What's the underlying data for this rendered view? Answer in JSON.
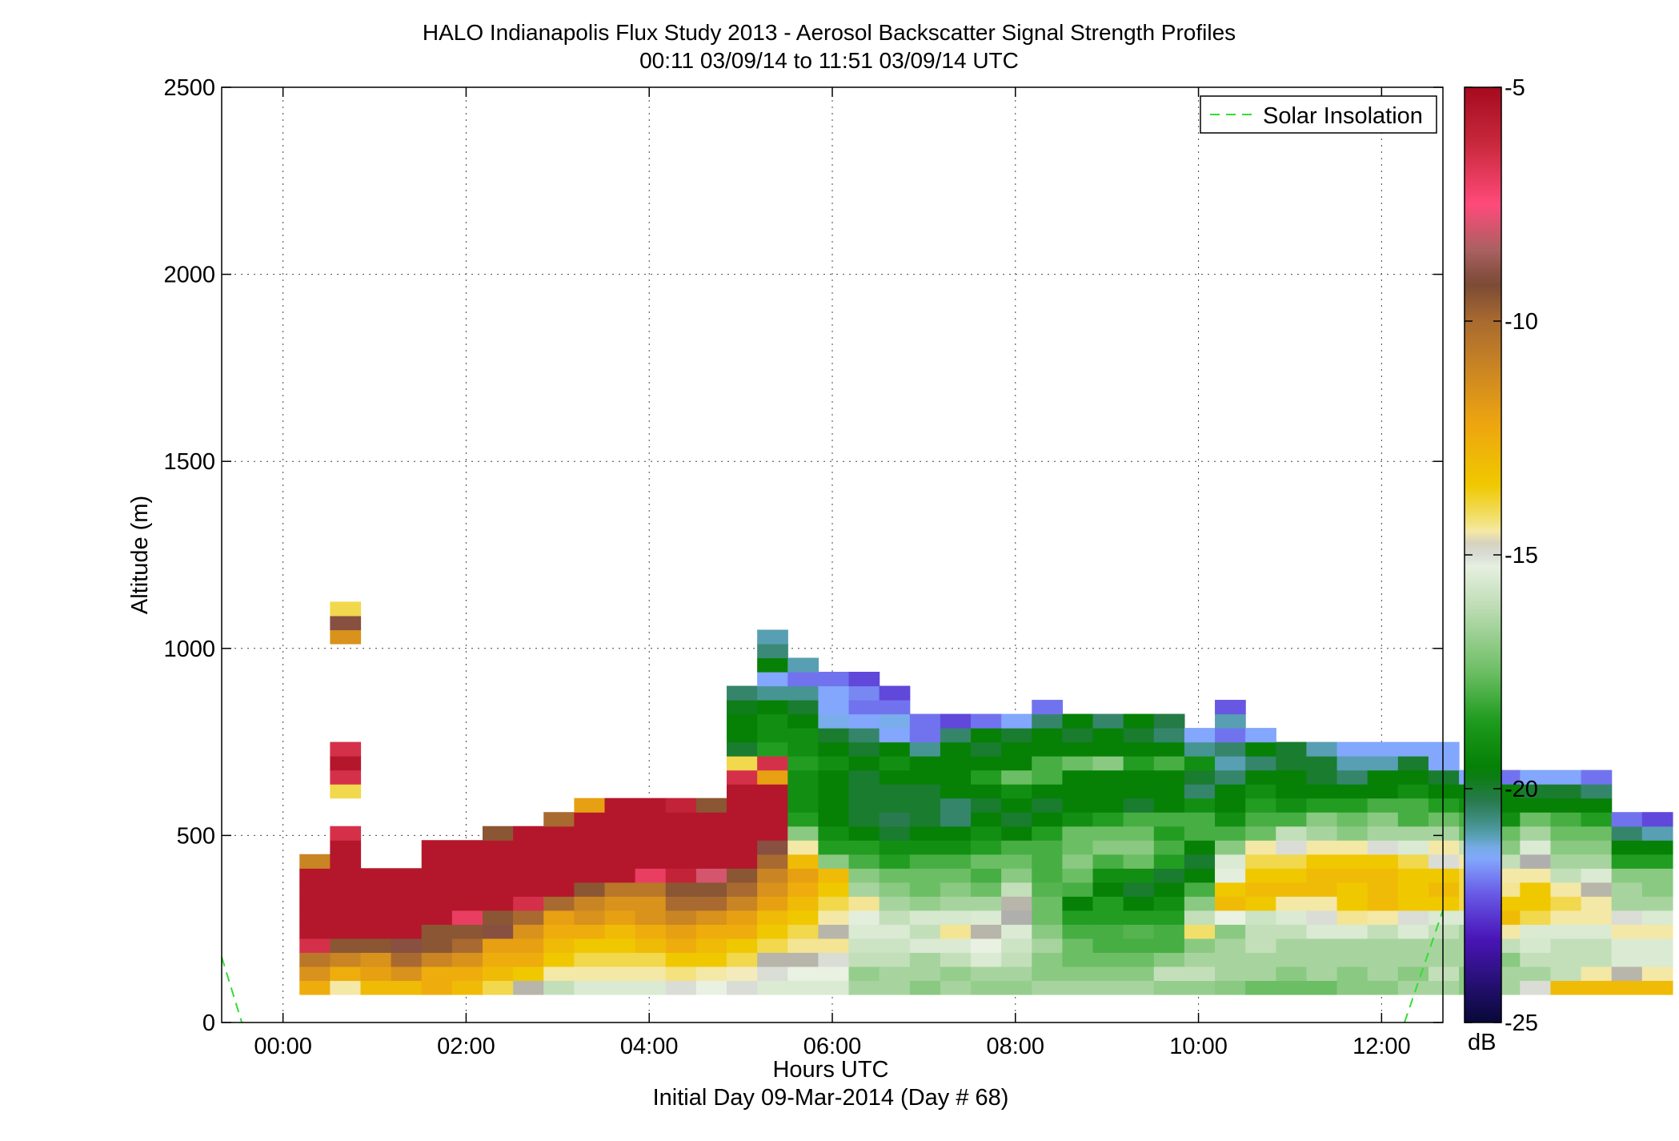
{
  "chart_data": {
    "type": "heatmap",
    "title": "HALO Indianapolis Flux Study 2013 - Aerosol Backscatter Signal Strength Profiles",
    "subtitle": "00:11 03/09/14 to 11:51 03/09/14  UTC",
    "xlabel": "Hours UTC",
    "xlabel2": "Initial Day 09-Mar-2014 (Day # 68)",
    "ylabel": "Altitude (m)",
    "xlim": [
      -0.67,
      12.67
    ],
    "ylim": [
      0,
      2500
    ],
    "x_ticks": [
      0,
      2,
      4,
      6,
      8,
      10,
      12
    ],
    "x_tick_labels": [
      "00:00",
      "02:00",
      "04:00",
      "06:00",
      "08:00",
      "10:00",
      "12:00"
    ],
    "y_ticks": [
      0,
      500,
      1000,
      1500,
      2000,
      2500
    ],
    "y_tick_labels": [
      "0",
      "500",
      "1000",
      "1500",
      "2000",
      "2500"
    ],
    "grid": true,
    "legend": {
      "position": "top-right",
      "entries": [
        {
          "name": "Solar Insolation",
          "style": "dashed",
          "color": "#33dd33"
        }
      ]
    },
    "colorbar": {
      "label": "dB",
      "range": [
        -25,
        -5
      ],
      "ticks": [
        -5,
        -10,
        -15,
        -20,
        -25
      ],
      "tick_labels": [
        "-5",
        "-10",
        "-15",
        "-20",
        "-25"
      ]
    },
    "series": [
      {
        "name": "Solar Insolation",
        "x": [
          -0.67,
          -0.45,
          12.25,
          12.67
        ],
        "y": [
          175,
          0,
          0,
          300
        ]
      }
    ],
    "heatmap": {
      "x_start": 0.18,
      "dx": 0.3333,
      "y_start": 75,
      "dy": 37.5,
      "value_units": "dB",
      "columns": [
        [
          -12.5,
          -11.5,
          -10.5,
          -6.5,
          -5.5,
          -5.5,
          -5.5,
          -5.5,
          -5.5,
          -11
        ],
        [
          -14.5,
          -12.5,
          -11,
          -9.5,
          -5.5,
          -5.5,
          -5.5,
          -5.5,
          -5.5,
          -5.5,
          -5.5,
          -6.5,
          null,
          null,
          -14,
          -6.5,
          -5.5,
          -6.5,
          null,
          null,
          null,
          null,
          null,
          null,
          null,
          -11.5,
          -9,
          -14
        ],
        [
          -13,
          -12,
          -11.5,
          -9.5,
          -5.5,
          -5.5,
          -5.5,
          -5.5,
          -5.5
        ],
        [
          -13,
          -11.5,
          -10,
          -9,
          -5.5,
          -5.5,
          -5.5,
          -5.5,
          -5.5
        ],
        [
          -12.5,
          -12.5,
          -11,
          -9.5,
          -9.5,
          -5.5,
          -5.5,
          -5.5,
          -5.5,
          -5.5,
          -5.5
        ],
        [
          -13,
          -12.5,
          -11.5,
          -10,
          -9.5,
          -7,
          -5.5,
          -5.5,
          -5.5,
          -5.5,
          -5.5
        ],
        [
          -14,
          -13,
          -12.5,
          -12,
          -9,
          -9.5,
          -5.5,
          -5.5,
          -5.5,
          -5.5,
          -5.5,
          -9.5
        ],
        [
          -14.8,
          -13.5,
          -12.5,
          -12,
          -11.5,
          -10,
          -6.5,
          -5.5,
          -5.5,
          -5.5,
          -5.5,
          -5.5
        ],
        [
          -16,
          -14.5,
          -13.5,
          -13,
          -12.5,
          -12,
          -10,
          -5.5,
          -5.5,
          -5.5,
          -5.5,
          -5.5,
          -10
        ],
        [
          -15.5,
          -14.5,
          -14,
          -13.5,
          -12.5,
          -11.5,
          -11,
          -9.5,
          -5.5,
          -5.5,
          -5.5,
          -5.5,
          -5.5,
          -12
        ],
        [
          -15.5,
          -14.5,
          -14,
          -13.5,
          -13,
          -12,
          -11.5,
          -10.5,
          -5.5,
          -5.5,
          -5.5,
          -5.5,
          -5.5,
          -5.5
        ],
        [
          -15.5,
          -14.5,
          -14,
          -13,
          -12.5,
          -11.5,
          -11.5,
          -10.5,
          -7,
          -5.5,
          -5.5,
          -5.5,
          -5.5,
          -5.5
        ],
        [
          -15,
          -14.3,
          -13.5,
          -12.5,
          -12,
          -11,
          -10,
          -9.5,
          -6,
          -5.5,
          -5.5,
          -5.5,
          -5.5,
          -6
        ],
        [
          -15.2,
          -14.5,
          -13.5,
          -13,
          -12.5,
          -11.5,
          -10,
          -9.5,
          -8,
          -5.5,
          -5.5,
          -5.5,
          -5.5,
          -9.5
        ],
        [
          -15,
          -14.6,
          -14,
          -13.5,
          -12.5,
          -12,
          -11,
          -10,
          -9.5,
          -5.5,
          -5.5,
          -5.5,
          -5.5,
          -5.5,
          -5.5,
          -6.5,
          -14,
          -20,
          -19.5,
          -19.5,
          -19.8,
          -20.5
        ],
        [
          -15.5,
          -15,
          -14.8,
          -14,
          -13.5,
          -13,
          -12,
          -11.5,
          -11,
          -10,
          -9,
          -5.5,
          -5.5,
          -5.5,
          -5.5,
          -12,
          -6.5,
          -18.5,
          -19,
          -19,
          -19.5,
          -20.8,
          -21.5,
          -19.5,
          -20.6,
          -21
        ],
        [
          -15.5,
          -15.2,
          -14.8,
          -14.4,
          -14,
          -13.5,
          -13,
          -12.5,
          -12,
          -13,
          -14.5,
          -17,
          -18.5,
          -19,
          -19,
          -19,
          -18.5,
          -19,
          -19,
          -19.5,
          -20,
          -20.8,
          -22,
          -21
        ],
        [
          -15.5,
          -15.2,
          -15,
          -14.4,
          -14.8,
          -14.5,
          -14,
          -13.5,
          -13,
          -17,
          -18.5,
          -19,
          -19.5,
          -19.5,
          -19.5,
          -19.5,
          -19,
          -19.5,
          -20,
          -21.3,
          -21.5,
          -21.5,
          -22
        ],
        [
          -16.5,
          -16.8,
          -16,
          -15.8,
          -15.5,
          -15.3,
          -14.4,
          -16.5,
          -17,
          -18,
          -18.5,
          -19.5,
          -20,
          -20,
          -20,
          -20,
          -19.5,
          -20,
          -20.5,
          -21.5,
          -22,
          -21.8,
          -22.5
        ],
        [
          -16.5,
          -16.5,
          -16,
          -15.8,
          -15.5,
          -16,
          -16.5,
          -17,
          -17.5,
          -18.5,
          -19,
          -20,
          -20.3,
          -20,
          -20,
          -19.5,
          -19,
          -19.5,
          -21.5,
          -21.3,
          -22,
          -22.5
        ],
        [
          -17,
          -16.5,
          -16.5,
          -15.5,
          -16,
          -15.6,
          -16.8,
          -17.5,
          -17.5,
          -18,
          -19,
          -19.5,
          -20,
          -20,
          -20,
          -19.5,
          -19.5,
          -20.8,
          -22,
          -22
        ],
        [
          -16.5,
          -16.8,
          -16,
          -15.5,
          -14.4,
          -15.6,
          -16.5,
          -17,
          -17.5,
          -18,
          -19,
          -19.5,
          -20.5,
          -20.5,
          -19.5,
          -19.5,
          -19.5,
          -19.5,
          -20.5,
          -22.5
        ],
        [
          -16.8,
          -16.5,
          -15.5,
          -15.2,
          -14.8,
          -15.5,
          -16.5,
          -17.5,
          -18,
          -17.5,
          -18.5,
          -19,
          -19.5,
          -20,
          -19.5,
          -18.5,
          -19.5,
          -20,
          -19.5,
          -22
        ],
        [
          -16.8,
          -16.5,
          -16,
          -15.8,
          -15.5,
          -14.9,
          -14.8,
          -16,
          -17,
          -17.5,
          -18,
          -19.5,
          -20,
          -19.5,
          -19,
          -17.5,
          -19.5,
          -19.5,
          -20,
          -21.5
        ],
        [
          -16.5,
          -17,
          -17,
          -16.5,
          -17,
          -17.5,
          -17.5,
          -17.8,
          -18,
          -18,
          -18,
          -18.5,
          -19.5,
          -20,
          -19.5,
          -18,
          -18,
          -19.5,
          -19.5,
          -20.5,
          -22
        ],
        [
          -16.5,
          -17,
          -17.5,
          -17.5,
          -18,
          -18.5,
          -19.5,
          -18,
          -17.5,
          -17,
          -17.5,
          -17.5,
          -19,
          -19.5,
          -19.5,
          -19.5,
          -17.5,
          -19.5,
          -20,
          -19.5
        ],
        [
          -16.5,
          -17,
          -17.5,
          -18,
          -18,
          -18.5,
          -18.5,
          -19.5,
          -19,
          -18,
          -17,
          -17.5,
          -18.5,
          -19.5,
          -19.5,
          -19.5,
          -17,
          -19.5,
          -19.5,
          -20.5
        ],
        [
          -16.5,
          -17,
          -17.5,
          -18,
          -17.8,
          -18.5,
          -19.5,
          -20,
          -19,
          -17.5,
          -17,
          -17.5,
          -18,
          -20,
          -19.5,
          -19.5,
          -18.5,
          -19.5,
          -20,
          -19.5
        ],
        [
          -16.8,
          -16,
          -17,
          -18,
          -18,
          -18.5,
          -19,
          -19.5,
          -20,
          -18.5,
          -18,
          -18.5,
          -18,
          -19.5,
          -19.5,
          -19.5,
          -18,
          -19.5,
          -20.5,
          -20.2
        ],
        [
          -16.8,
          -16,
          -16.5,
          -17,
          -14.2,
          -16,
          -17,
          -18,
          -19.5,
          -20,
          -19.5,
          -18,
          -18,
          -19,
          -20.5,
          -20,
          -19,
          -20.8,
          -21.5
        ],
        [
          -17,
          -16.5,
          -16.5,
          -16.5,
          -17,
          -15.2,
          -13,
          -13.5,
          -15.3,
          -15.5,
          -17,
          -18,
          -19,
          -19.5,
          -19.5,
          -20.5,
          -21,
          -20.5,
          -22,
          -21,
          -22.3
        ],
        [
          -17.5,
          -16.5,
          -16.5,
          -16,
          -16,
          -15.8,
          -13.5,
          -13,
          -13.5,
          -14,
          -14.5,
          -17.5,
          -18,
          -18.5,
          -19,
          -19.5,
          -20.5,
          -19.5,
          -21.5
        ],
        [
          -17.5,
          -17,
          -16.5,
          -16.5,
          -16,
          -15.5,
          -14.5,
          -13,
          -13.5,
          -14,
          -15,
          -16,
          -18,
          -19,
          -19.5,
          -19.5,
          -20,
          -20
        ],
        [
          -17.5,
          -16.5,
          -16.5,
          -16.5,
          -15.5,
          -15,
          -14.5,
          -13,
          -13,
          -13.5,
          -14.5,
          -16.5,
          -17,
          -18.5,
          -19.5,
          -20,
          -20,
          -21
        ],
        [
          -17,
          -17,
          -16.5,
          -16.5,
          -15.5,
          -14.4,
          -13.5,
          -13.5,
          -13,
          -13.5,
          -14.5,
          -17,
          -17.5,
          -18.5,
          -19.5,
          -20.5,
          -21,
          -21.5
        ],
        [
          -17,
          -16.5,
          -16.5,
          -16.5,
          -16,
          -14.5,
          -13,
          -13,
          -13,
          -13.5,
          -15,
          -16.5,
          -17,
          -18,
          -19.5,
          -19.5,
          -21,
          -21.5
        ],
        [
          -16.5,
          -17,
          -16.5,
          -16.5,
          -15.5,
          -15,
          -13.5,
          -13.5,
          -13.5,
          -14,
          -15.5,
          -16.5,
          -18,
          -18,
          -19,
          -19.5,
          -20,
          -21.5
        ],
        [
          -16.5,
          -16,
          -16.5,
          -16.5,
          -16,
          -15.5,
          -13.5,
          -13,
          -13.5,
          -15,
          -14.5,
          -16.5,
          -17.5,
          -18.5,
          -19.5,
          -20,
          -21.5,
          -21.5
        ],
        [
          -17,
          -17,
          -16.5,
          -16.5,
          -16.5,
          -15.5,
          -14,
          -14,
          -14,
          -14.5,
          -16,
          -17.5,
          -18,
          -19,
          -19.5,
          -21.5
        ],
        [
          -16.5,
          -16.5,
          -17,
          -16,
          -14.5,
          -13,
          -13.5,
          -14.4,
          -14.5,
          -16,
          -17,
          -17.5,
          -19,
          -19.5,
          -19.5,
          -22
        ],
        [
          -15,
          -16.5,
          -16,
          -15.6,
          -15.5,
          -14,
          -13.5,
          -13.5,
          -14.5,
          -14.9,
          -15.5,
          -16.5,
          -17.5,
          -19.5,
          -20,
          -21.5
        ],
        [
          -13,
          -16,
          -16,
          -16,
          -15.5,
          -14.5,
          -14,
          -14.5,
          -16,
          -16.5,
          -17,
          -17.5,
          -18,
          -19.5,
          -20,
          -21.5
        ],
        [
          -13,
          -14.5,
          -16,
          -16,
          -15.5,
          -14.5,
          -14.5,
          -14.8,
          -15.5,
          -16.5,
          -17,
          -17.5,
          -18.5,
          -19.5,
          -20.5,
          -22
        ],
        [
          -13,
          -14.8,
          -15.5,
          -15.5,
          -14.5,
          -15,
          -16.5,
          -16.5,
          -17,
          -18.5,
          -19.5,
          -20.5,
          -22
        ],
        [
          -13,
          -14.5,
          -15.5,
          -15.5,
          -14.5,
          -15.5,
          -16.5,
          -17,
          -17,
          -18.5,
          -19.5,
          -21,
          -22.5
        ]
      ]
    }
  }
}
